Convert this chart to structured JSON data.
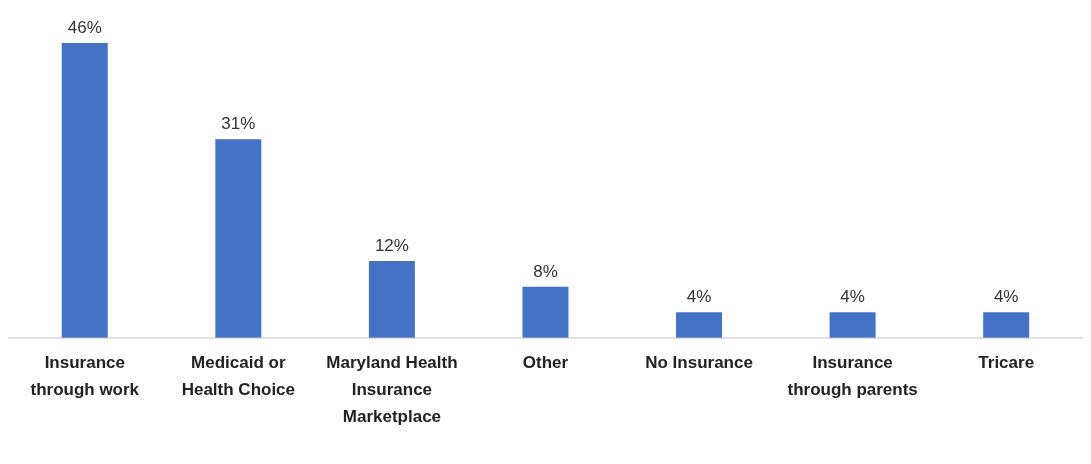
{
  "chart_data": {
    "type": "bar",
    "categories": [
      "Insurance through work",
      "Medicaid or Health Choice",
      "Maryland Health Insurance Marketplace",
      "Other",
      "No Insurance",
      "Insurance through parents",
      "Tricare"
    ],
    "values": [
      46,
      31,
      12,
      8,
      4,
      4,
      4
    ],
    "value_labels": [
      "46%",
      "31%",
      "12%",
      "8%",
      "4%",
      "4%",
      "4%"
    ],
    "color": "#4472c4",
    "grid": false,
    "legend": false
  }
}
